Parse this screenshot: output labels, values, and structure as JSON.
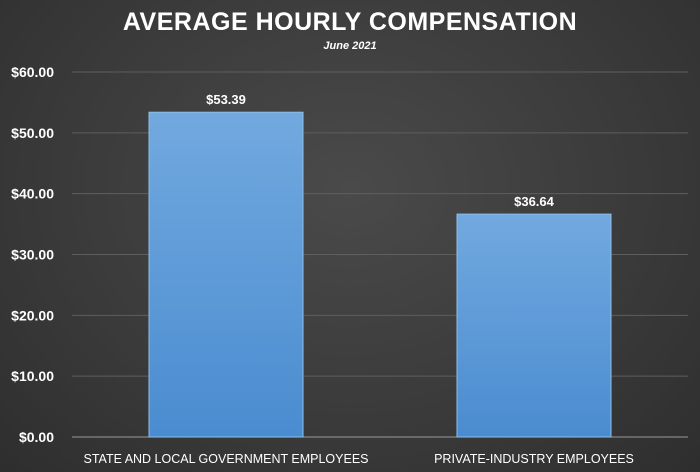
{
  "chart_data": {
    "type": "bar",
    "title": "AVERAGE HOURLY COMPENSATION",
    "subtitle": "June 2021",
    "categories": [
      "STATE AND LOCAL GOVERNMENT EMPLOYEES",
      "PRIVATE-INDUSTRY EMPLOYEES"
    ],
    "values": [
      53.39,
      36.64
    ],
    "data_labels": [
      "$53.39",
      "$36.64"
    ],
    "y_ticks": [
      0,
      10,
      20,
      30,
      40,
      50,
      60
    ],
    "y_tick_labels": [
      "$0.00",
      "$10.00",
      "$20.00",
      "$30.00",
      "$40.00",
      "$50.00",
      "$60.00"
    ],
    "ylim": [
      0,
      60
    ],
    "grid": true,
    "legend": "none",
    "bar_color": "#5b9bd5",
    "background_color": "#3f3f3f"
  }
}
